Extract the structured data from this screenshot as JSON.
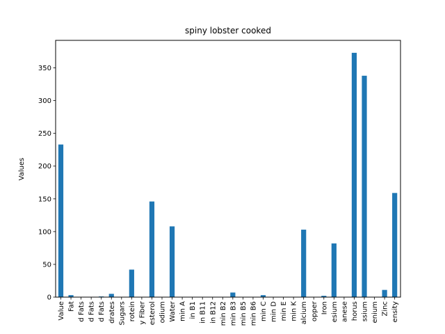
{
  "chart_data": {
    "type": "bar",
    "title": "spiny lobster cooked",
    "xlabel": "",
    "ylabel": "Values",
    "ylim": [
      0,
      392
    ],
    "yticks": [
      0,
      50,
      100,
      150,
      200,
      250,
      300,
      350
    ],
    "grid": false,
    "bar_color": "#1f77b4",
    "categories": [
      "Value",
      "Fat",
      "d Fats",
      "d Fats",
      "d Fats",
      "drates",
      "Sugars",
      "rotein",
      "y Fiber",
      "esterol",
      "odium",
      "Water",
      "min A",
      "in B1",
      "in B11",
      "in B12",
      "min B2",
      "min B3",
      "min B5",
      "min B6",
      "min C",
      "min D",
      "min E",
      "min K",
      "alcium",
      "opper",
      "Iron",
      "esium",
      "anese",
      "horus",
      "ssium",
      "enium",
      "Zinc",
      "ensity"
    ],
    "values": [
      233,
      3,
      0,
      0,
      1,
      5,
      0,
      42,
      0,
      146,
      0,
      108,
      0,
      0,
      0,
      0,
      0,
      7,
      0,
      0,
      3,
      0,
      0,
      0,
      103,
      0,
      2,
      82,
      0,
      373,
      338,
      0,
      11,
      159
    ]
  }
}
